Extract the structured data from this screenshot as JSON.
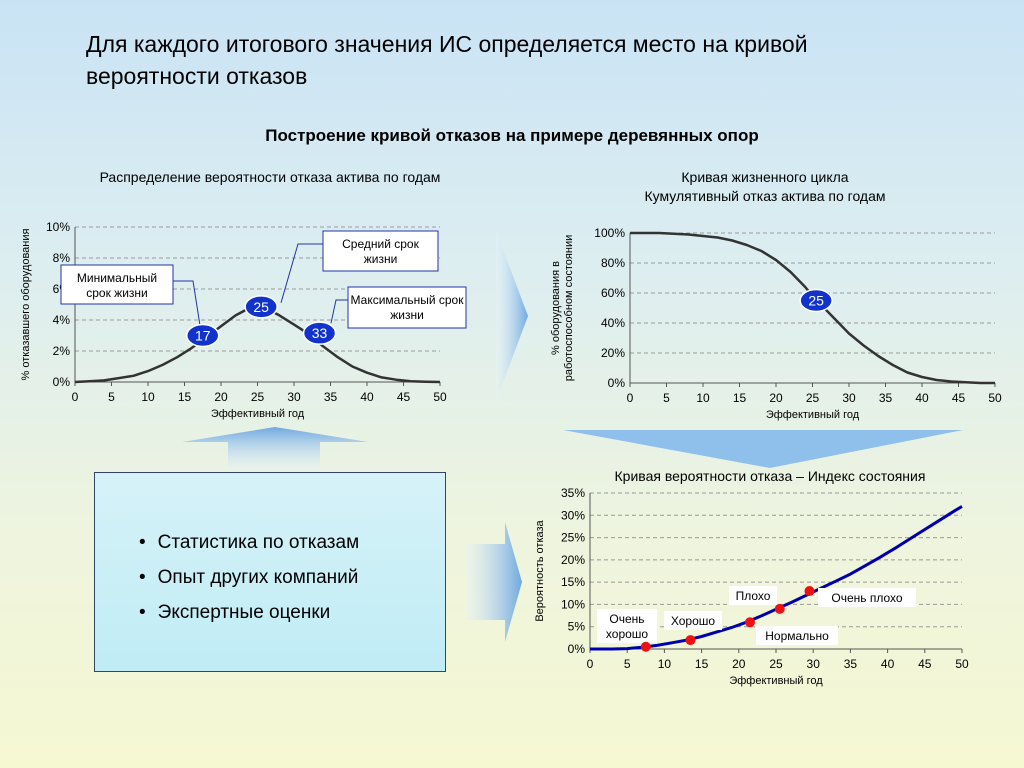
{
  "slide": {
    "title": "Для каждого итогового значения ИС определяется место на кривой вероятности отказов",
    "subtitle": "Построение кривой отказов на примере деревянных опор"
  },
  "stats_box": {
    "items": [
      "Статистика по отказам",
      "Опыт других компаний",
      "Экспертные оценки"
    ]
  },
  "chart_data": [
    {
      "type": "line",
      "title": "Распределение вероятности отказа актива по годам",
      "xlabel": "Эффективный год",
      "ylabel": "% отказавшего оборудования",
      "xlim": [
        0,
        50
      ],
      "ylim": [
        0,
        10
      ],
      "x_ticks": [
        0,
        5,
        10,
        15,
        20,
        25,
        30,
        35,
        40,
        45,
        50
      ],
      "y_ticks": [
        "0%",
        "2%",
        "4%",
        "6%",
        "8%",
        "10%"
      ],
      "series": [
        {
          "x": [
            0,
            2,
            4,
            6,
            8,
            10,
            12,
            14,
            16,
            18,
            20,
            22,
            24,
            25,
            26,
            28,
            30,
            32,
            34,
            36,
            38,
            40,
            42,
            44,
            46,
            48,
            50
          ],
          "y": [
            0,
            0.05,
            0.1,
            0.25,
            0.4,
            0.7,
            1.1,
            1.6,
            2.2,
            2.9,
            3.6,
            4.3,
            4.8,
            5.0,
            4.8,
            4.3,
            3.7,
            3.1,
            2.3,
            1.6,
            1.0,
            0.6,
            0.3,
            0.15,
            0.05,
            0.02,
            0
          ]
        }
      ],
      "markers": [
        {
          "label": "17",
          "x": 17.5,
          "y": 3.0
        },
        {
          "label": "25",
          "x": 25.5,
          "y": 4.85
        },
        {
          "label": "33",
          "x": 33.5,
          "y": 3.15
        }
      ],
      "callouts": [
        {
          "text": "Минимальный срок жизни"
        },
        {
          "text": "Средний срок жизни"
        },
        {
          "text": "Максимальный срок жизни"
        }
      ],
      "grid": true
    },
    {
      "type": "line",
      "title": "Кривая жизненного цикла",
      "subtitle": "Кумулятивный отказ актива по годам",
      "xlabel": "Эффективный год",
      "ylabel": "% оборудования в работоспособном состоянии",
      "xlim": [
        0,
        50
      ],
      "ylim": [
        0,
        100
      ],
      "x_ticks": [
        0,
        5,
        10,
        15,
        20,
        25,
        30,
        35,
        40,
        45,
        50
      ],
      "y_ticks": [
        "0%",
        "20%",
        "40%",
        "60%",
        "80%",
        "100%"
      ],
      "series": [
        {
          "x": [
            0,
            4,
            6,
            8,
            10,
            12,
            14,
            16,
            18,
            20,
            22,
            24,
            25,
            26,
            28,
            30,
            32,
            34,
            36,
            38,
            40,
            42,
            44,
            46,
            48,
            50
          ],
          "y": [
            100,
            100,
            99.5,
            99,
            98,
            97,
            95,
            92,
            88,
            82,
            74,
            64,
            58,
            53,
            43,
            33,
            25,
            18,
            12,
            7,
            4,
            2,
            1,
            0.5,
            0,
            0
          ]
        }
      ],
      "markers": [
        {
          "label": "25",
          "x": 25.5,
          "y": 55
        }
      ],
      "grid": true
    },
    {
      "type": "line",
      "title": "Кривая вероятности отказа – Индекс состояния",
      "xlabel": "Эффективный год",
      "ylabel": "Вероятность отказа",
      "xlim": [
        0,
        50
      ],
      "ylim": [
        0,
        35
      ],
      "x_ticks": [
        0,
        5,
        10,
        15,
        20,
        25,
        30,
        35,
        40,
        45,
        50
      ],
      "y_ticks": [
        "0%",
        "5%",
        "10%",
        "15%",
        "20%",
        "25%",
        "30%",
        "35%"
      ],
      "series": [
        {
          "x": [
            0,
            3,
            5,
            7,
            9,
            11,
            13,
            15,
            17,
            19,
            21,
            23,
            25,
            27,
            29,
            31,
            33,
            35,
            37,
            39,
            41,
            43,
            45,
            47,
            49,
            50
          ],
          "y": [
            0,
            0,
            0.1,
            0.4,
            0.8,
            1.4,
            2.0,
            2.8,
            3.8,
            4.8,
            6.0,
            7.4,
            8.9,
            10.4,
            12.0,
            13.6,
            15.2,
            16.8,
            18.7,
            20.6,
            22.6,
            24.7,
            26.8,
            28.9,
            31.0,
            32.0
          ]
        }
      ],
      "points": [
        {
          "x": 7.5,
          "y": 0.5,
          "label": "Очень хорошо"
        },
        {
          "x": 13.5,
          "y": 2.0,
          "label": "Хорошо"
        },
        {
          "x": 21.5,
          "y": 6.0,
          "label": "Нормально"
        },
        {
          "x": 25.5,
          "y": 9.0,
          "label": "Плохо"
        },
        {
          "x": 29.5,
          "y": 13.0,
          "label": "Очень плохо"
        }
      ],
      "grid": true
    }
  ],
  "colors": {
    "line_dark": "#333333",
    "line_blue": "#0000aa",
    "marker_blue": "#1133cc",
    "point_red": "#ee1111",
    "arrow_blue": "#7fb3e6",
    "callout_border": "#2233aa"
  }
}
